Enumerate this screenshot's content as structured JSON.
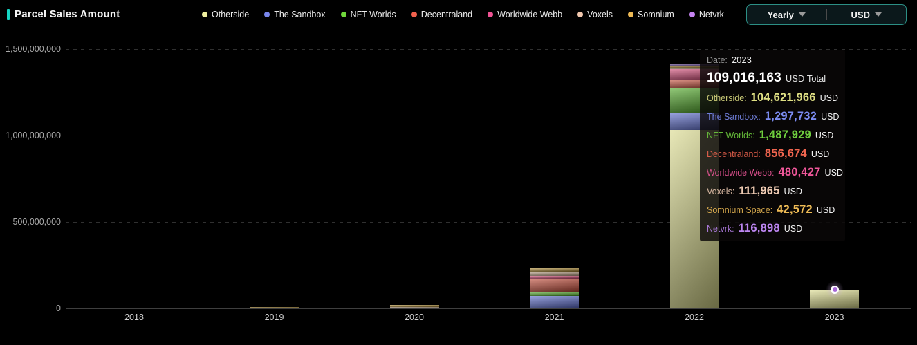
{
  "header": {
    "title": "Parcel Sales Amount",
    "accent_color": "#15d5c3",
    "controls": {
      "period_label": "Yearly",
      "currency_label": "USD"
    }
  },
  "legend": [
    {
      "label": "Otherside",
      "color": "#efef9f"
    },
    {
      "label": "The Sandbox",
      "color": "#7986ec"
    },
    {
      "label": "NFT Worlds",
      "color": "#70d83b"
    },
    {
      "label": "Decentraland",
      "color": "#f2614d"
    },
    {
      "label": "Worldwide Webb",
      "color": "#f05394"
    },
    {
      "label": "Voxels",
      "color": "#f2c8ae"
    },
    {
      "label": "Somnium",
      "color": "#eeba55"
    },
    {
      "label": "Netvrk",
      "color": "#c583f0"
    }
  ],
  "chart_data": {
    "type": "bar",
    "stacked": true,
    "title": "Parcel Sales Amount",
    "categories": [
      "2018",
      "2019",
      "2020",
      "2021",
      "2022",
      "2023"
    ],
    "series": [
      {
        "name": "Otherside",
        "color": "#d9d98a",
        "values": [
          0,
          0,
          0,
          0,
          1032000000,
          104621966
        ]
      },
      {
        "name": "The Sandbox",
        "color": "#5b6bcc",
        "values": [
          0,
          0,
          4000000,
          74000000,
          100000000,
          1297732
        ]
      },
      {
        "name": "NFT Worlds",
        "color": "#4aa321",
        "values": [
          0,
          0,
          0,
          20000000,
          140000000,
          1487929
        ]
      },
      {
        "name": "Decentraland",
        "color": "#c04936",
        "values": [
          3000000,
          4000000,
          2000000,
          80000000,
          48000000,
          856674
        ]
      },
      {
        "name": "Worldwide Webb",
        "color": "#cc4470",
        "values": [
          0,
          0,
          0,
          14000000,
          64000000,
          480427
        ]
      },
      {
        "name": "Voxels",
        "color": "#c2a78c",
        "values": [
          0,
          2000000,
          2000000,
          24000000,
          8000000,
          111965
        ]
      },
      {
        "name": "Somnium",
        "color": "#a8862f",
        "values": [
          0,
          4000000,
          12000000,
          20000000,
          12000000,
          42572
        ]
      },
      {
        "name": "Netvrk",
        "color": "#8463b5",
        "values": [
          0,
          0,
          0,
          3000000,
          12000000,
          116898
        ]
      }
    ],
    "ylim": [
      0,
      1500000000
    ],
    "yticks": [
      {
        "value": 0,
        "label": "0"
      },
      {
        "value": 500000000,
        "label": "500,000,000"
      },
      {
        "value": 1000000000,
        "label": "1,000,000,000"
      },
      {
        "value": 1500000000,
        "label": "1,500,000,000"
      }
    ],
    "grid": "dashed horizontal",
    "legend_position": "top"
  },
  "tooltip": {
    "date_label": "Date:",
    "date_value": "2023",
    "total_value": "109,016,163",
    "total_suffix": "USD Total",
    "rows": [
      {
        "label": "Otherside:",
        "value": "104,621,966",
        "suffix": "USD",
        "color": "#e0e084"
      },
      {
        "label": "The Sandbox:",
        "value": "1,297,732",
        "suffix": "USD",
        "color": "#7c8cf2"
      },
      {
        "label": "NFT Worlds:",
        "value": "1,487,929",
        "suffix": "USD",
        "color": "#6fce3e"
      },
      {
        "label": "Decentraland:",
        "value": "856,674",
        "suffix": "USD",
        "color": "#f0654f"
      },
      {
        "label": "Worldwide Webb:",
        "value": "480,427",
        "suffix": "USD",
        "color": "#f0579a"
      },
      {
        "label": "Voxels:",
        "value": "111,965",
        "suffix": "USD",
        "color": "#f0ccb4"
      },
      {
        "label": "Somnium Space:",
        "value": "42,572",
        "suffix": "USD",
        "color": "#eebb55"
      },
      {
        "label": "Netvrk:",
        "value": "116,898",
        "suffix": "USD",
        "color": "#bd86f2"
      }
    ]
  },
  "hover": {
    "category": "2023",
    "marker_color": "#a767d8"
  }
}
